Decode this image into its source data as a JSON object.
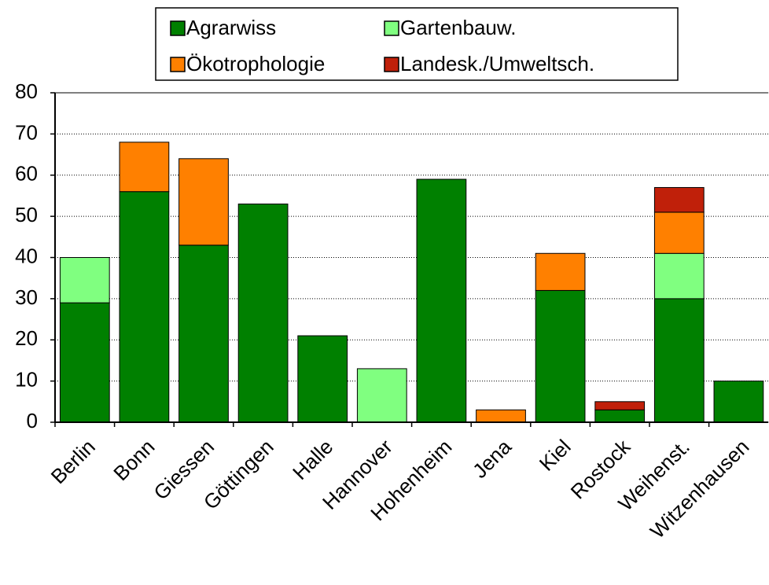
{
  "chart_data": {
    "type": "stacked_bar",
    "categories": [
      "Berlin",
      "Bonn",
      "Giessen",
      "Göttingen",
      "Halle",
      "Hannover",
      "Hohenheim",
      "Jena",
      "Kiel",
      "Rostock",
      "Weihenst.",
      "Witzenhausen"
    ],
    "series": [
      {
        "name": "Agrarwiss",
        "color": "#008000",
        "values": [
          29,
          56,
          43,
          53,
          21,
          0,
          59,
          0,
          32,
          3,
          30,
          10
        ]
      },
      {
        "name": "Gartenbauw.",
        "color": "#80ff80",
        "values": [
          11,
          0,
          0,
          0,
          0,
          13,
          0,
          0,
          0,
          0,
          11,
          0
        ]
      },
      {
        "name": "Ökotrophologie",
        "color": "#ff8000",
        "values": [
          0,
          12,
          21,
          0,
          0,
          0,
          0,
          3,
          9,
          0,
          10,
          0
        ]
      },
      {
        "name": "Landesk./Umweltsch.",
        "color": "#c0200a",
        "values": [
          0,
          0,
          0,
          0,
          0,
          0,
          0,
          0,
          0,
          2,
          6,
          0
        ]
      }
    ],
    "ylim": [
      0,
      80
    ],
    "yticks": [
      0,
      10,
      20,
      30,
      40,
      50,
      60,
      70,
      80
    ],
    "grid": true,
    "legend": "top"
  }
}
